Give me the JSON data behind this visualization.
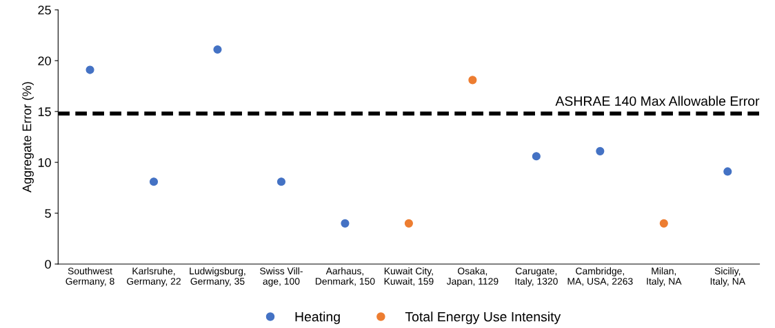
{
  "chart_data": {
    "type": "scatter",
    "ylabel": "Aggregate Error (%)",
    "categories": [
      "Southwest\nGermany, 8",
      "Karlsruhe,\nGermany, 22",
      "Ludwigsburg,\nGermany, 35",
      "Swiss Vill-\nage, 100",
      "Aarhaus,\nDenmark, 150",
      "Kuwait City,\nKuwait, 159",
      "Osaka,\nJapan, 1129",
      "Carugate,\nItaly, 1320",
      "Cambridge,\nMA, USA, 2263",
      "Milan,\nItaly, NA",
      "Siciliy,\nItaly, NA"
    ],
    "series": [
      {
        "name": "Heating",
        "color": "#4472c4",
        "values": [
          19.1,
          8.1,
          21.1,
          8.1,
          4.0,
          null,
          null,
          10.6,
          11.1,
          null,
          9.1
        ]
      },
      {
        "name": "Total Energy Use Intensity",
        "color": "#ed7d31",
        "values": [
          null,
          null,
          null,
          null,
          null,
          4.0,
          18.1,
          null,
          null,
          4.0,
          null
        ]
      }
    ],
    "ylim": [
      0,
      25
    ],
    "yticks": [
      0,
      5,
      10,
      15,
      20,
      25
    ],
    "ref_lines": [
      {
        "axis": "y",
        "value": 14.8,
        "label": "ASHRAE 140 Max Allowable Error",
        "color": "#000000",
        "line_style": "dashed"
      }
    ],
    "grid": false,
    "legend": "bottom",
    "marker": "circle"
  }
}
